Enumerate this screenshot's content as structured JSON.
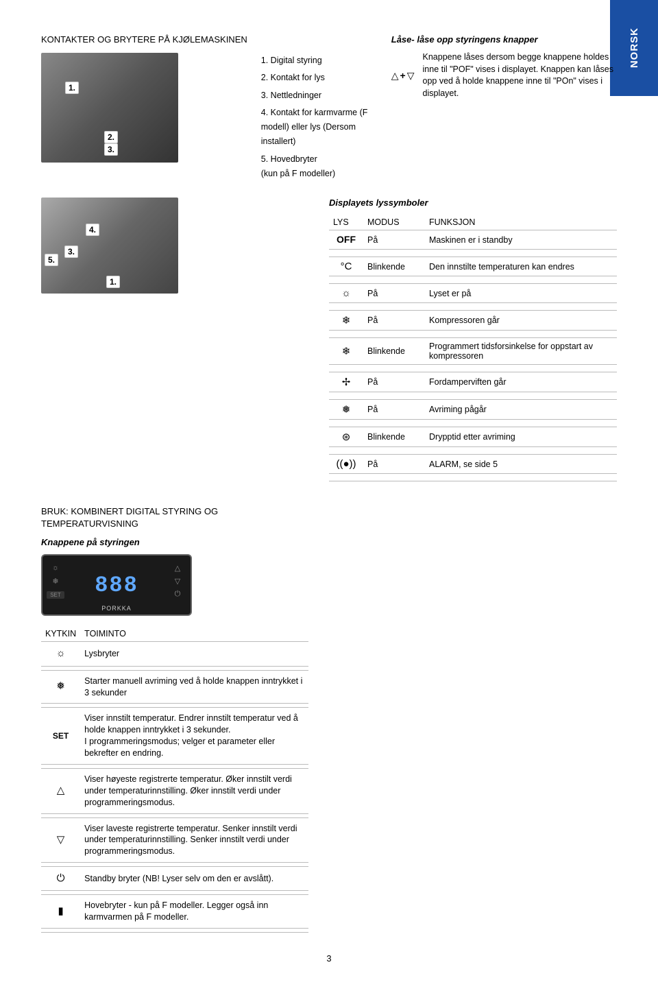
{
  "norsk_tab": "NORSK",
  "title_main": "KONTAKTER OG BRYTERE PÅ KJØLEMASKINEN",
  "photo1_callouts": {
    "c1": "1.",
    "c2": "2.",
    "c3": "3."
  },
  "photo2_callouts": {
    "c1": "1.",
    "c3": "3.",
    "c4": "4.",
    "c5": "5."
  },
  "legend": {
    "l1": "1. Digital styring",
    "l2": "2. Kontakt for lys",
    "l3": "3. Nettledninger",
    "l4": "4. Kontakt for karmvarme (F modell) eller lys (Dersom installert)",
    "l5": "5. Hovedbryter\n(kun på F modeller)"
  },
  "lock": {
    "heading": "Låse- låse opp styringens knapper",
    "text": "Knappene låses dersom begge knappene holdes inne til \"POF\" vises i displayet. Knappen kan låses opp ved å holde knappene inne til \"POn\" vises i displayet."
  },
  "display_symbols": {
    "heading": "Displayets lyssymboler",
    "headers": {
      "lys": "LYS",
      "modus": "MODUS",
      "funksjon": "FUNKSJON"
    },
    "rows": [
      {
        "icon_text": "OFF",
        "icon_class": "off-text",
        "modus": "På",
        "funksjon": "Maskinen er i standby"
      },
      {
        "icon": "°C",
        "modus": "Blinkende",
        "funksjon": "Den innstilte temperaturen kan endres"
      },
      {
        "icon": "☼",
        "modus": "På",
        "funksjon": "Lyset er på"
      },
      {
        "icon": "❄",
        "modus": "På",
        "funksjon": "Kompressoren går"
      },
      {
        "icon": "❄",
        "modus": "Blinkende",
        "funksjon": "Programmert tidsforsinkelse for oppstart av kompressoren"
      },
      {
        "icon": "✢",
        "modus": "På",
        "funksjon": "Fordamperviften går"
      },
      {
        "icon": "❅",
        "modus": "På",
        "funksjon": "Avriming pågår"
      },
      {
        "icon": "⊛",
        "modus": "Blinkende",
        "funksjon": "Drypptid etter avriming"
      },
      {
        "icon": "((●))",
        "modus": "På",
        "funksjon": "ALARM, se side 5"
      }
    ]
  },
  "section2_title": "BRUK: KOMBINERT DIGITAL STYRING OG TEMPERATURVISNING",
  "knappene_heading": "Knappene på styringen",
  "controller": {
    "display": "888",
    "brand": "PORKKA"
  },
  "kytkin_table": {
    "headers": {
      "kytkin": "KYTKIN",
      "toiminto": "TOIMINTO"
    },
    "rows": [
      {
        "icon": "☼",
        "text": "Lysbryter"
      },
      {
        "icon": "❅",
        "text": "Starter manuell avriming ved å holde knappen inntrykket i 3 sekunder"
      },
      {
        "icon_text": "SET",
        "icon_class": "set-text",
        "text": "Viser innstilt temperatur. Endrer innstilt temperatur ved å holde knappen inntrykket i 3 sekunder.\nI programmeringsmodus; velger et parameter eller bekrefter en endring."
      },
      {
        "icon": "△",
        "text": "Viser høyeste registrerte temperatur. Øker innstilt verdi under temperaturinnstilling. Øker innstilt verdi under programmeringsmodus."
      },
      {
        "icon": "▽",
        "text": "Viser laveste registrerte temperatur. Senker innstilt verdi under temperaturinnstilling. Senker innstilt verdi under programmeringsmodus."
      },
      {
        "icon": "⏻",
        "text": "Standby bryter (NB! Lyser selv om den er avslått)."
      },
      {
        "icon": "▮",
        "text": "Hovebryter - kun på F modeller. Legger også inn karmvarmen på F modeller."
      }
    ]
  },
  "page_number": "3"
}
